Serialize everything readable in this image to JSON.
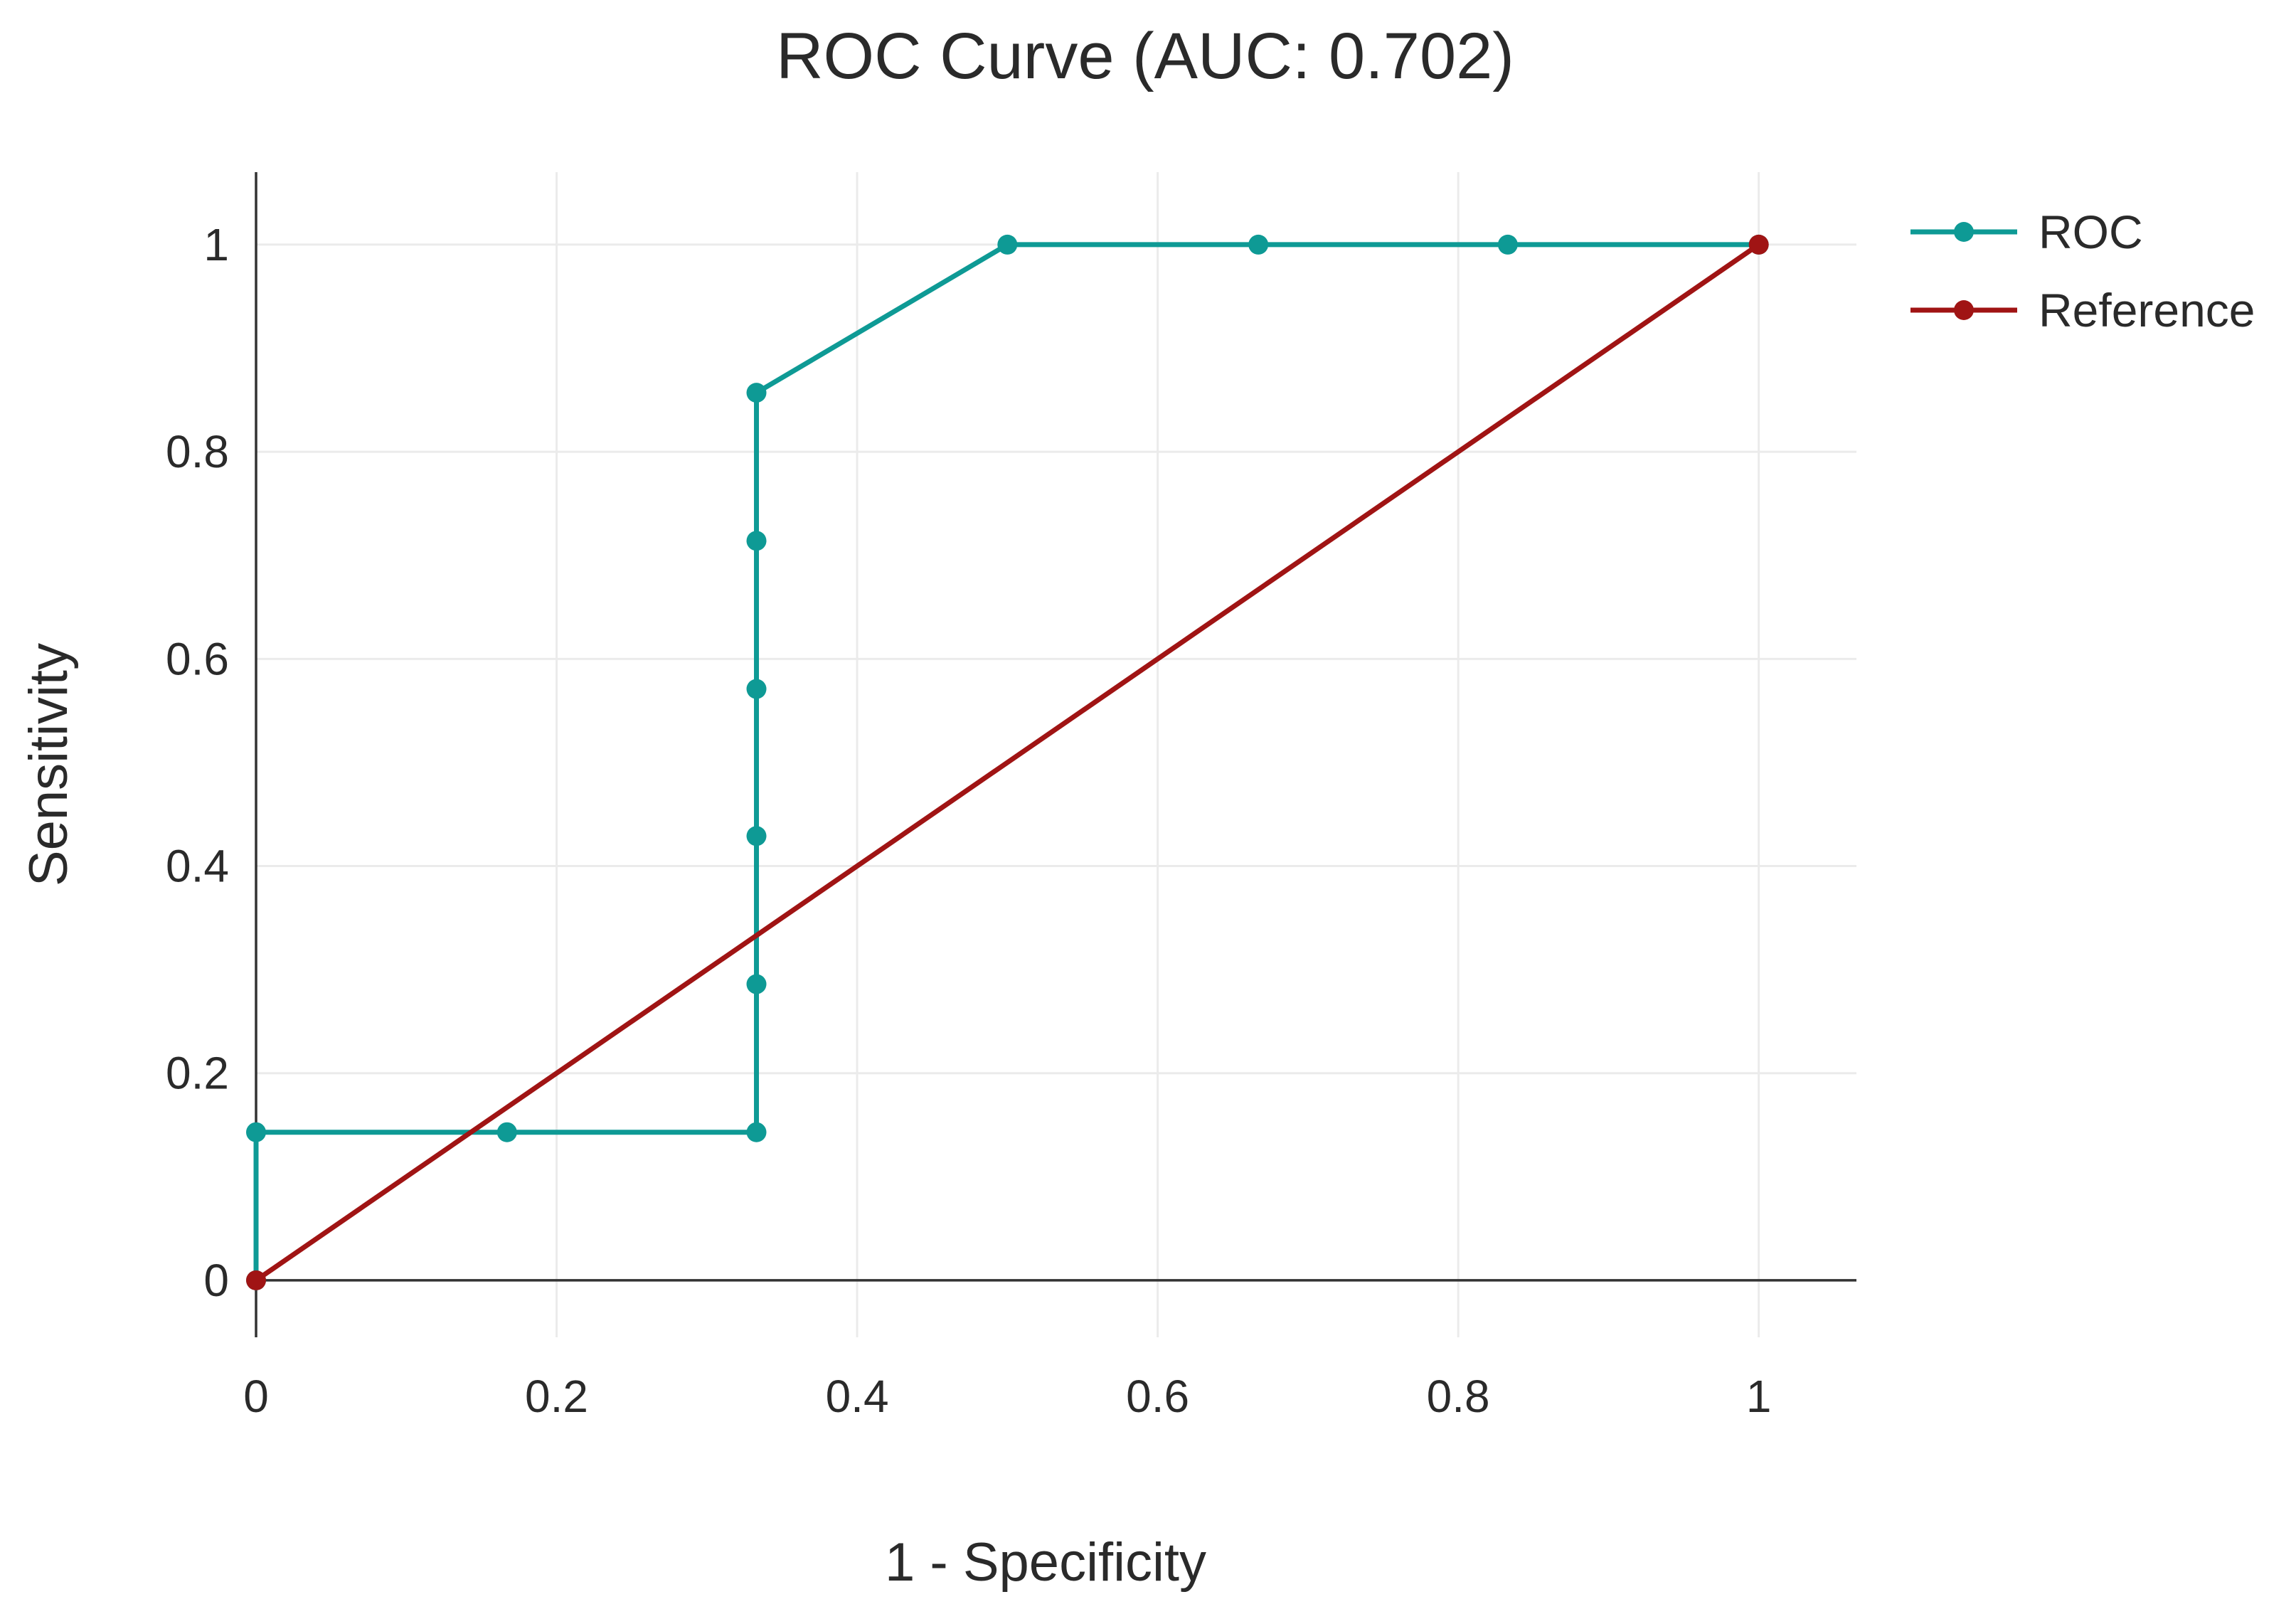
{
  "chart_data": {
    "type": "line",
    "title": "ROC Curve (AUC: 0.702)",
    "xlabel": "1 - Specificity",
    "ylabel": "Sensitivity",
    "xlim": [
      0,
      1.065
    ],
    "ylim": [
      -0.055,
      1.07
    ],
    "grid": true,
    "legend_position": "right",
    "x_ticks": [
      0,
      0.2,
      0.4,
      0.6,
      0.8,
      1
    ],
    "x_tick_labels": [
      "0",
      "0.2",
      "0.4",
      "0.6",
      "0.8",
      "1"
    ],
    "y_ticks": [
      0,
      0.2,
      0.4,
      0.6,
      0.8,
      1
    ],
    "y_tick_labels": [
      "0",
      "0.2",
      "0.4",
      "0.6",
      "0.8",
      "1"
    ],
    "series": [
      {
        "name": "ROC",
        "color": "#0e9a95",
        "x": [
          0,
          0,
          0.167,
          0.333,
          0.333,
          0.333,
          0.333,
          0.333,
          0.333,
          0.5,
          0.667,
          0.833,
          1
        ],
        "y": [
          0,
          0.143,
          0.143,
          0.143,
          0.286,
          0.429,
          0.571,
          0.714,
          0.857,
          1,
          1,
          1,
          1
        ]
      },
      {
        "name": "Reference",
        "color": "#a01414",
        "x": [
          0,
          1
        ],
        "y": [
          0,
          1
        ]
      }
    ]
  }
}
